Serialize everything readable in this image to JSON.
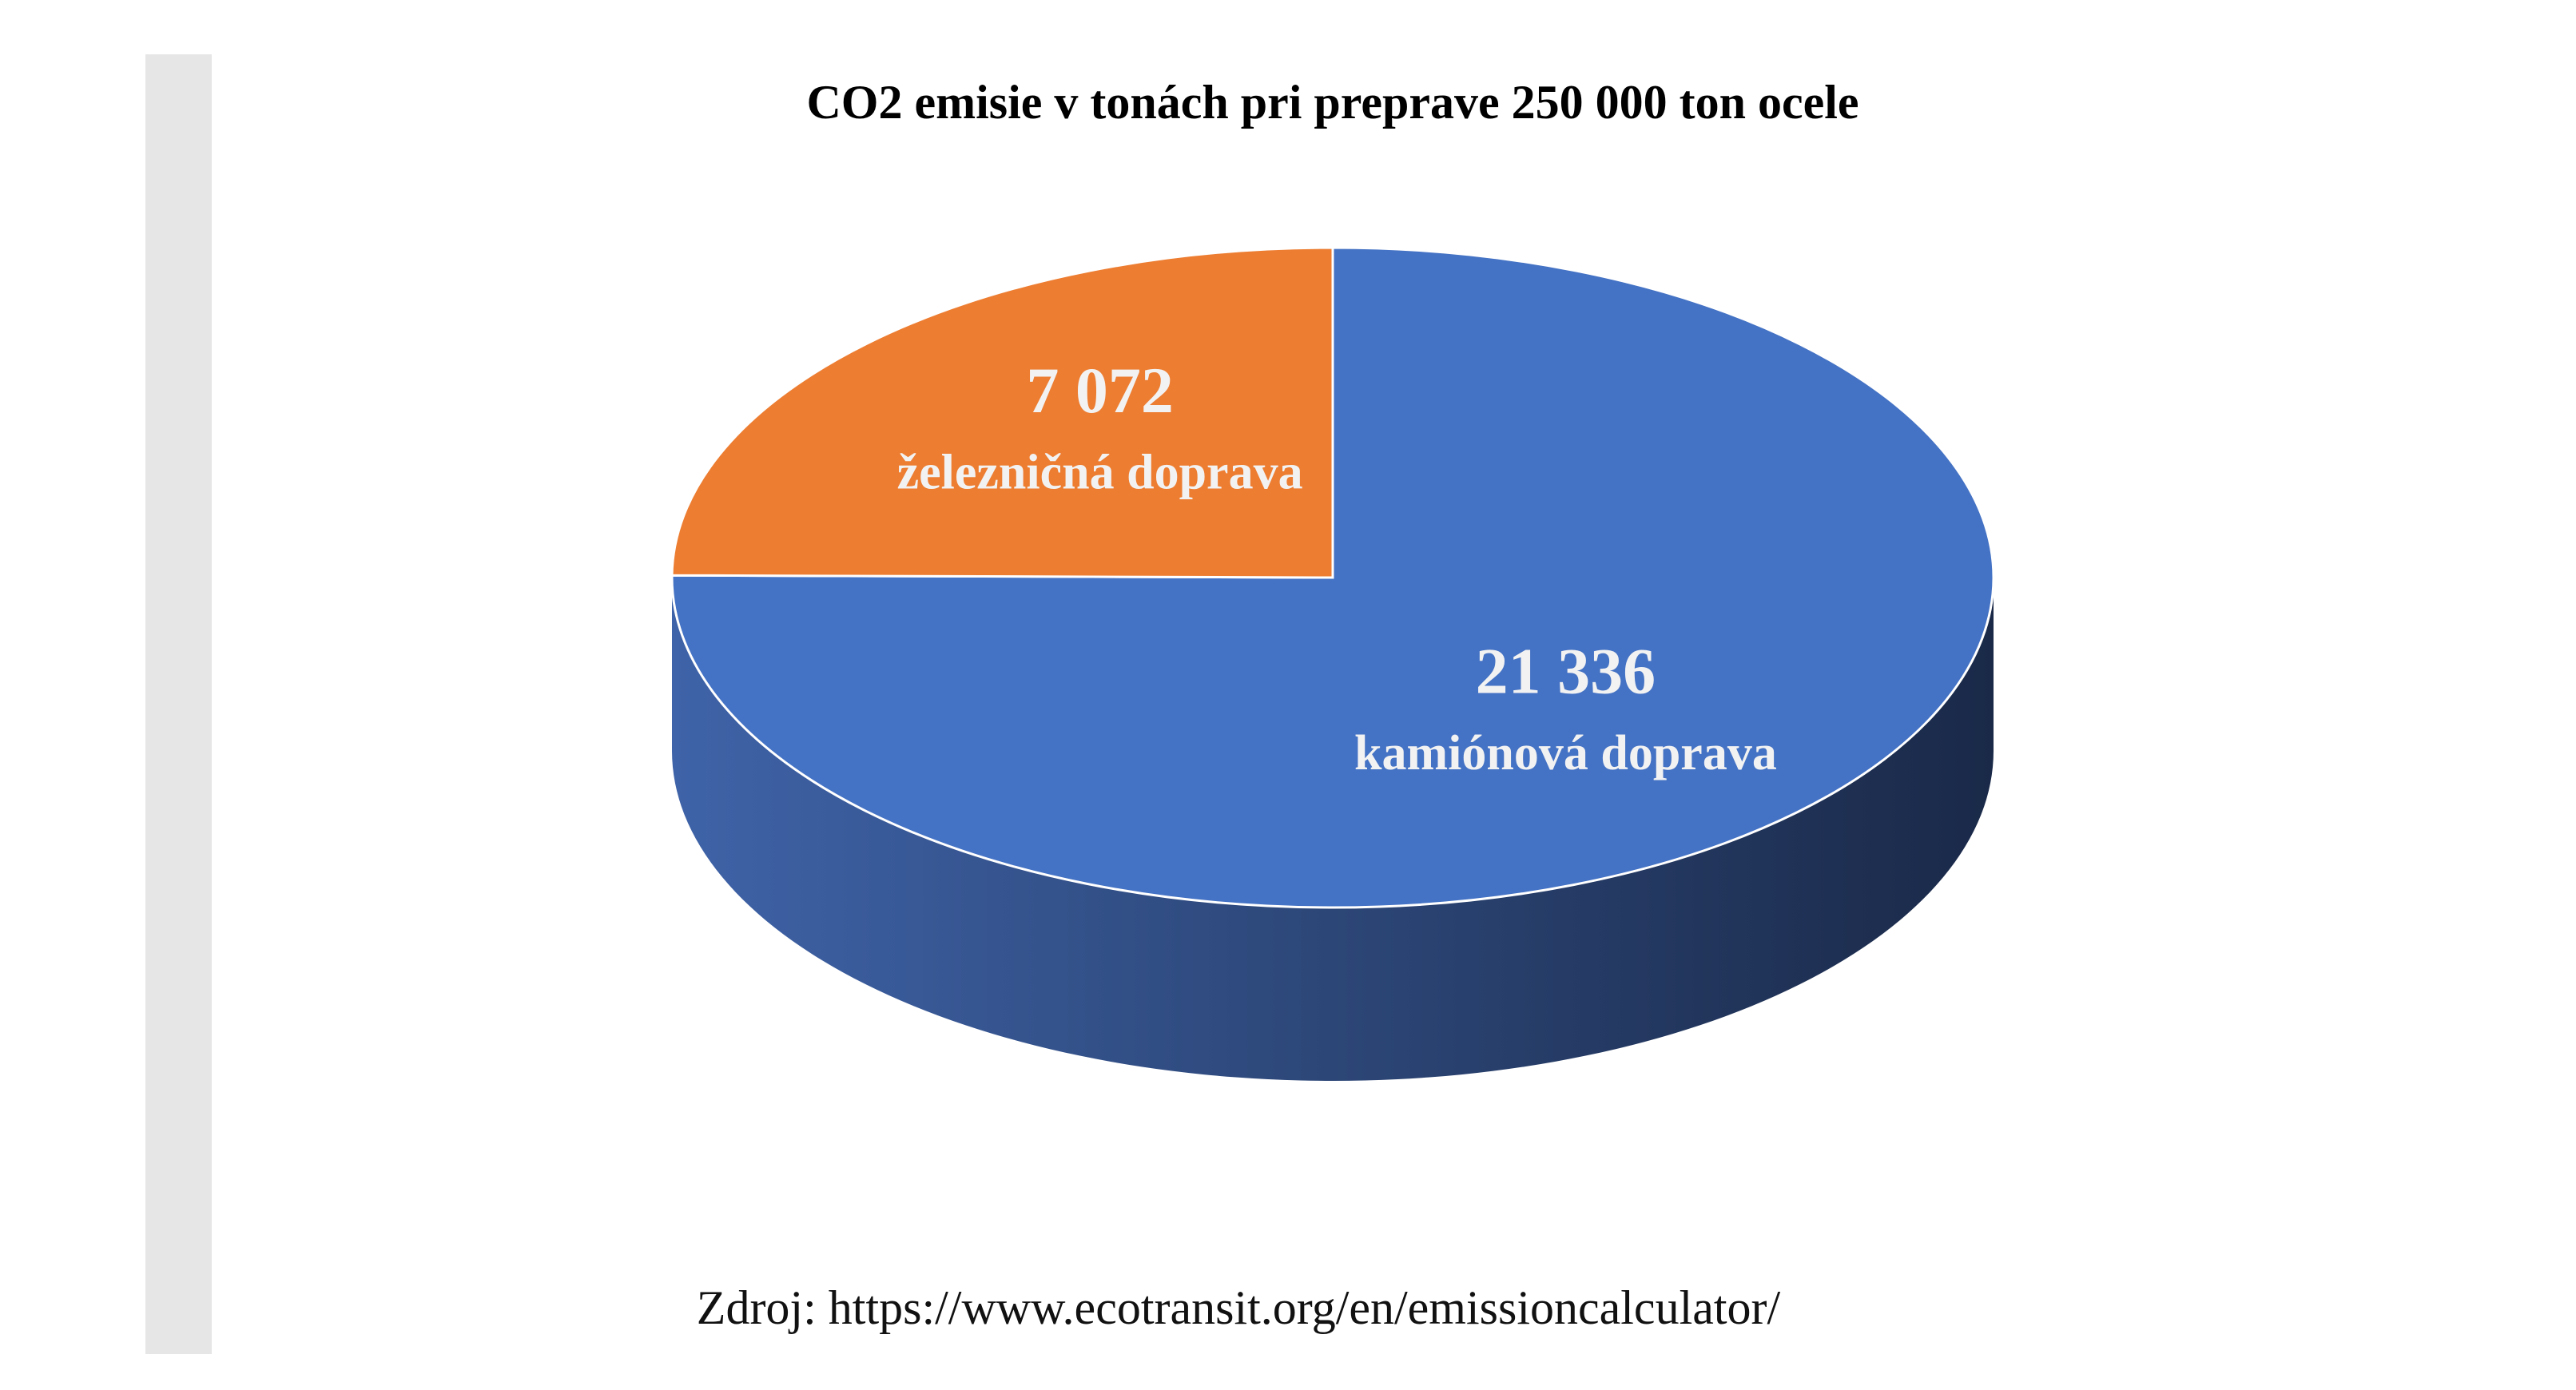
{
  "chart_data": {
    "type": "pie",
    "title": "CO2 emisie v tonách pri preprave 250 000 ton ocele",
    "categories": [
      "kamiónová doprava",
      "železničná doprava"
    ],
    "values": [
      21336,
      7072
    ],
    "value_labels": [
      "21 336",
      "7 072"
    ],
    "colors": [
      "#4472c4",
      "#ed7d31"
    ],
    "source": "Zdroj: https://www.ecotransit.org/en/emissioncalculator/"
  }
}
